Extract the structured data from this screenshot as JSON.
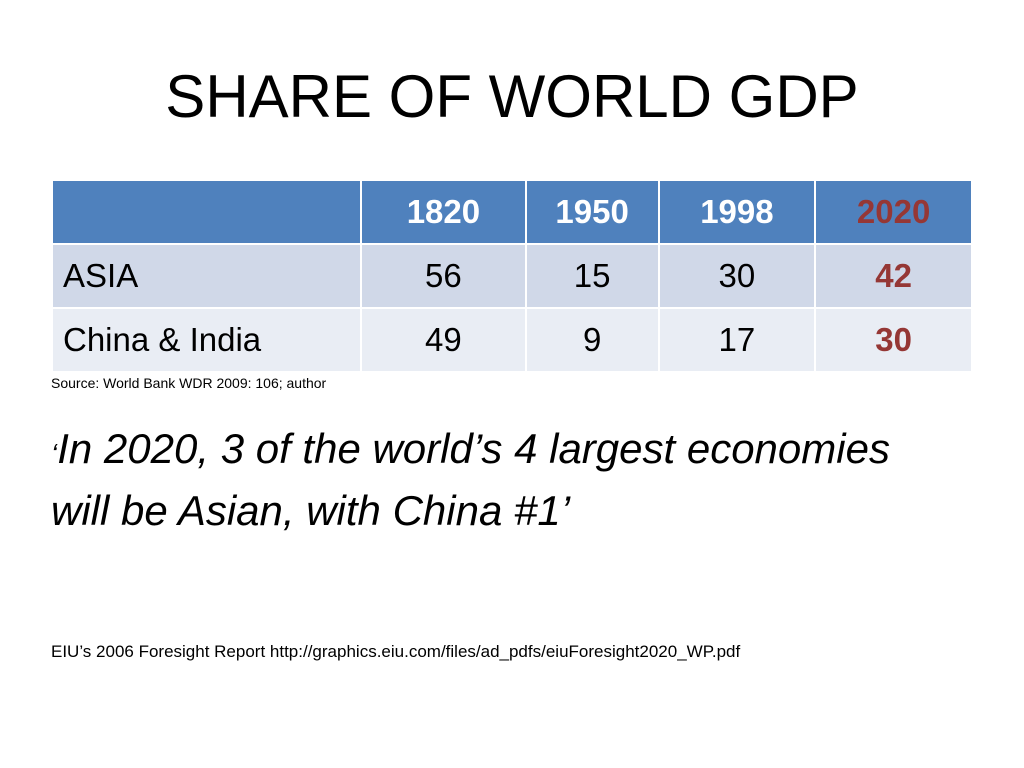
{
  "slide": {
    "title": "SHARE OF WORLD GDP",
    "table": {
      "headers": [
        "",
        "1820",
        "1950",
        "1998",
        "2020"
      ],
      "rows": [
        {
          "label": "ASIA",
          "values": [
            "56",
            "15",
            "30",
            "42"
          ]
        },
        {
          "label": "China & India",
          "values": [
            "49",
            "9",
            "17",
            "30"
          ]
        }
      ]
    },
    "source": "Source: World Bank WDR 2009: 106; author",
    "quote": {
      "open_mark": "‘",
      "text": "In 2020, 3 of the world’s 4 largest economies will be Asian, with China #1’"
    },
    "reference": "EIU’s 2006 Foresight Report http://graphics.eiu.com/files/ad_pdfs/eiuForesight2020_WP.pdf"
  },
  "colors": {
    "header_bg": "#4f81bd",
    "row_odd_bg": "#d0d8e8",
    "row_even_bg": "#e9edf4",
    "highlight": "#953735"
  }
}
